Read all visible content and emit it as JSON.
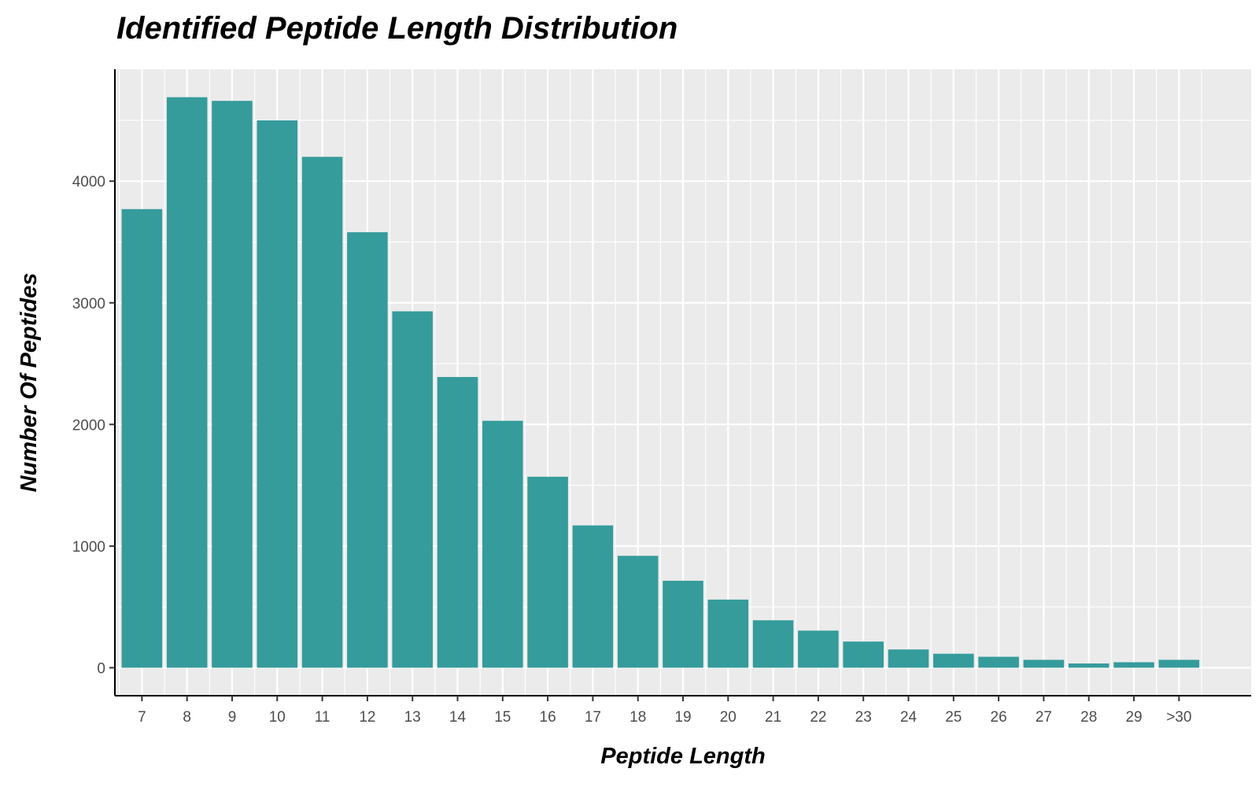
{
  "chart_data": {
    "type": "bar",
    "title": "Identified Peptide Length Distribution",
    "xlabel": "Peptide Length",
    "ylabel": "Number Of Peptides",
    "categories": [
      "7",
      "8",
      "9",
      "10",
      "11",
      "12",
      "13",
      "14",
      "15",
      "16",
      "17",
      "18",
      "19",
      "20",
      "21",
      "22",
      "23",
      "24",
      "25",
      "26",
      "27",
      "28",
      "29",
      ">30"
    ],
    "values": [
      3770,
      4690,
      4660,
      4500,
      4200,
      3580,
      2930,
      2390,
      2030,
      1570,
      1170,
      920,
      715,
      560,
      390,
      305,
      215,
      150,
      115,
      90,
      65,
      35,
      45,
      65
    ],
    "yticks": [
      0,
      1000,
      2000,
      3000,
      4000
    ],
    "ylim": [
      -230,
      4920
    ],
    "grid": true,
    "colors": {
      "bar": "#359b9b",
      "panel": "#ebebeb",
      "grid": "#ffffff",
      "axis": "#000000"
    }
  }
}
